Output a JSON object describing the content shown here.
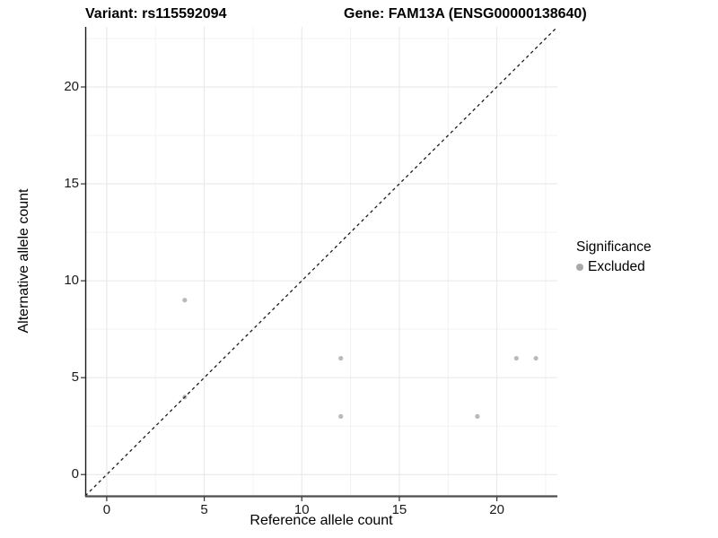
{
  "titles": {
    "left": "Variant: rs115592094",
    "right": "Gene: FAM13A (ENSG00000138640)"
  },
  "chart_data": {
    "type": "scatter",
    "xlabel": "Reference allele count",
    "ylabel": "Alternative allele count",
    "xlim": [
      -1.1,
      23.1
    ],
    "ylim": [
      -1.1,
      23.1
    ],
    "x_ticks": [
      0,
      5,
      10,
      15,
      20
    ],
    "y_ticks": [
      0,
      5,
      10,
      15,
      20
    ],
    "x_minor": [
      2.5,
      7.5,
      12.5,
      17.5,
      22.5
    ],
    "y_minor": [
      2.5,
      7.5,
      12.5,
      17.5,
      22.5
    ],
    "grid": "major+minor",
    "reference_line": {
      "type": "identity",
      "slope": 1,
      "intercept": 0,
      "style": "dashed",
      "color": "#1a1a1a"
    },
    "series": [
      {
        "name": "Excluded",
        "color": "#b9b9b9",
        "marker": "circle",
        "points": [
          [
            4,
            9
          ],
          [
            4,
            4
          ],
          [
            12,
            3
          ],
          [
            12,
            6
          ],
          [
            19,
            3
          ],
          [
            21,
            6
          ],
          [
            22,
            6
          ]
        ]
      }
    ],
    "legend": {
      "title": "Significance",
      "position": "right",
      "items": [
        {
          "label": "Excluded",
          "color": "#a9a9a9"
        }
      ]
    }
  },
  "colors": {
    "background": "#ffffff",
    "grid_major": "#e6e6e6",
    "grid_minor": "#f2f2f2",
    "axis_line_x": "#4d4d4d",
    "axis_line_y": "#1a1a1a",
    "tick_mark": "#333333",
    "tick_text": "#1a1a1a"
  }
}
